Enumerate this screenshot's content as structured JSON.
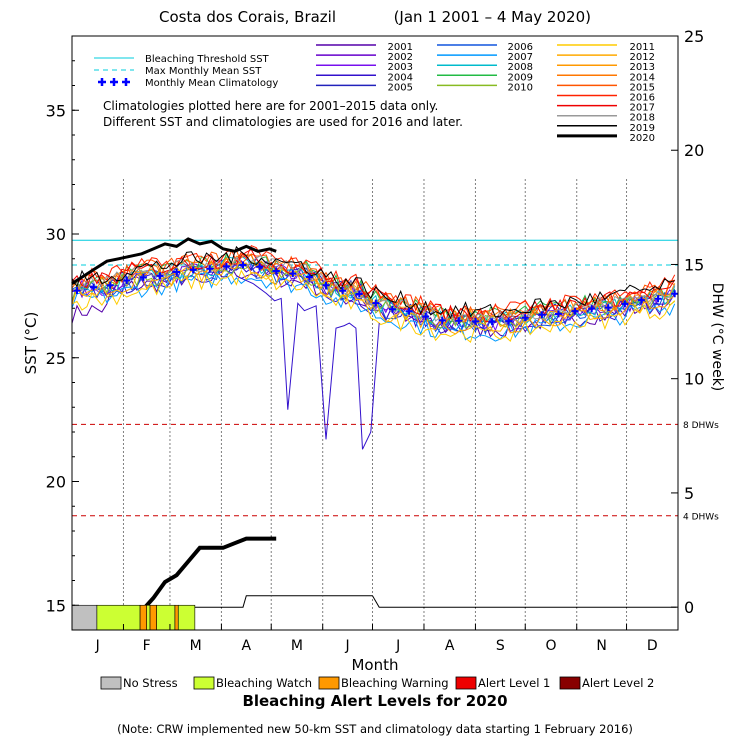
{
  "title": {
    "location": "Costa dos Corais, Brazil",
    "period": "(Jan 1 2001 – 4 May 2020)"
  },
  "note": "(Note: CRW implemented new 50-km SST and climatology data starting 1 February 2016)",
  "climatology_note": [
    "Climatologies plotted here are for 2001–2015 data only.",
    "Different SST and climatologies are used for 2016 and later."
  ],
  "reference_legend": [
    {
      "label": "Bleaching Threshold SST",
      "style": "solid",
      "color": "#00ccdd"
    },
    {
      "label": "Max Monthly Mean SST",
      "style": "dashed",
      "color": "#00ccdd"
    },
    {
      "label": "Monthly Mean Climatology",
      "style": "plus",
      "color": "#0000ff"
    }
  ],
  "alert_legend_title": "Bleaching Alert Levels for 2020",
  "alert_levels": [
    {
      "label": "No Stress",
      "color": "#c0c0c0"
    },
    {
      "label": "Bleaching Watch",
      "color": "#ccff33"
    },
    {
      "label": "Bleaching Warning",
      "color": "#ff9900"
    },
    {
      "label": "Alert Level 1",
      "color": "#ee0000"
    },
    {
      "label": "Alert Level 2",
      "color": "#880000"
    }
  ],
  "chart_data": {
    "type": "line",
    "xlabel": "Month",
    "ylabel": "SST (°C)",
    "y2label": "DHW (°C week)",
    "months": [
      "J",
      "F",
      "M",
      "A",
      "M",
      "J",
      "J",
      "A",
      "S",
      "O",
      "N",
      "D"
    ],
    "ylim": [
      14,
      38
    ],
    "yticks": [
      15,
      20,
      25,
      30,
      35
    ],
    "y2lim": [
      -1,
      25
    ],
    "y2ticks": [
      0,
      5,
      10,
      15,
      20,
      25
    ],
    "bleaching_threshold_sst": 29.75,
    "max_monthly_mean_sst": 28.75,
    "dhw_reference_lines": [
      {
        "dhw": 4,
        "label": "4 DHWs",
        "color": "#cc0000"
      },
      {
        "dhw": 8,
        "label": "8 DHWs",
        "color": "#cc0000"
      }
    ],
    "years": [
      {
        "year": "2001",
        "color": "#5500aa",
        "width": 1
      },
      {
        "year": "2002",
        "color": "#6600cc",
        "width": 1
      },
      {
        "year": "2003",
        "color": "#7711ee",
        "width": 1
      },
      {
        "year": "2004",
        "color": "#3311cc",
        "width": 1
      },
      {
        "year": "2005",
        "color": "#2222bb",
        "width": 1
      },
      {
        "year": "2006",
        "color": "#1155dd",
        "width": 1
      },
      {
        "year": "2007",
        "color": "#0099ff",
        "width": 1
      },
      {
        "year": "2008",
        "color": "#00bbcc",
        "width": 1
      },
      {
        "year": "2009",
        "color": "#22bb44",
        "width": 1
      },
      {
        "year": "2010",
        "color": "#88bb22",
        "width": 1
      },
      {
        "year": "2011",
        "color": "#ffcc00",
        "width": 1
      },
      {
        "year": "2012",
        "color": "#ffaa00",
        "width": 1
      },
      {
        "year": "2013",
        "color": "#ff9900",
        "width": 1
      },
      {
        "year": "2014",
        "color": "#ff7700",
        "width": 1
      },
      {
        "year": "2015",
        "color": "#ff5500",
        "width": 1
      },
      {
        "year": "2016",
        "color": "#ff2200",
        "width": 1
      },
      {
        "year": "2017",
        "color": "#ee0000",
        "width": 1
      },
      {
        "year": "2018",
        "color": "#999999",
        "width": 1
      },
      {
        "year": "2019",
        "color": "#000000",
        "width": 1
      },
      {
        "year": "2020",
        "color": "#000000",
        "width": 3
      }
    ],
    "monthly_mean_climatology": {
      "day": [
        15,
        46,
        74,
        105,
        135,
        166,
        196,
        227,
        258,
        288,
        319,
        349
      ],
      "sst": [
        27.85,
        28.25,
        28.55,
        28.75,
        28.4,
        27.7,
        26.95,
        26.5,
        26.45,
        26.75,
        27.0,
        27.35
      ]
    },
    "sst_2020": {
      "day": [
        1,
        8,
        15,
        22,
        29,
        36,
        43,
        50,
        57,
        64,
        71,
        78,
        85,
        92,
        99,
        106,
        113,
        120,
        124
      ],
      "sst": [
        28.0,
        28.3,
        28.6,
        28.9,
        29.0,
        29.1,
        29.2,
        29.4,
        29.6,
        29.5,
        29.8,
        29.6,
        29.7,
        29.4,
        29.3,
        29.5,
        29.3,
        29.4,
        29.3
      ]
    },
    "sst_2004_drops": {
      "day": [
        100,
        110,
        118,
        123,
        127,
        131,
        137,
        141,
        148,
        154,
        160,
        165,
        168,
        172,
        176,
        181,
        186
      ],
      "sst": [
        28.3,
        28.0,
        27.6,
        27.3,
        27.4,
        22.9,
        27.2,
        26.9,
        27.1,
        21.7,
        26.2,
        26.3,
        26.4,
        26.2,
        21.3,
        22.0,
        26.4
      ]
    },
    "dhw_2020": {
      "day": [
        1,
        45,
        50,
        57,
        64,
        71,
        78,
        85,
        92,
        99,
        106,
        113,
        120,
        124
      ],
      "dhw": [
        0,
        0,
        0.4,
        1.1,
        1.4,
        2.0,
        2.6,
        2.6,
        2.6,
        2.8,
        3.0,
        3.0,
        3.0,
        3.0
      ]
    },
    "dhw_2019": {
      "day": [
        1,
        104,
        106,
        182,
        186,
        365
      ],
      "dhw": [
        0,
        0,
        0.5,
        0.5,
        0,
        0
      ]
    },
    "alert_timeline_2020": [
      {
        "start": 1,
        "end": 16,
        "level": "No Stress"
      },
      {
        "start": 16,
        "end": 42,
        "level": "Bleaching Watch"
      },
      {
        "start": 42,
        "end": 46,
        "level": "Bleaching Warning"
      },
      {
        "start": 46,
        "end": 48,
        "level": "Bleaching Watch"
      },
      {
        "start": 48,
        "end": 52,
        "level": "Bleaching Warning"
      },
      {
        "start": 52,
        "end": 63,
        "level": "Bleaching Watch"
      },
      {
        "start": 63,
        "end": 65,
        "level": "Bleaching Warning"
      },
      {
        "start": 65,
        "end": 75,
        "level": "Bleaching Watch"
      }
    ]
  }
}
